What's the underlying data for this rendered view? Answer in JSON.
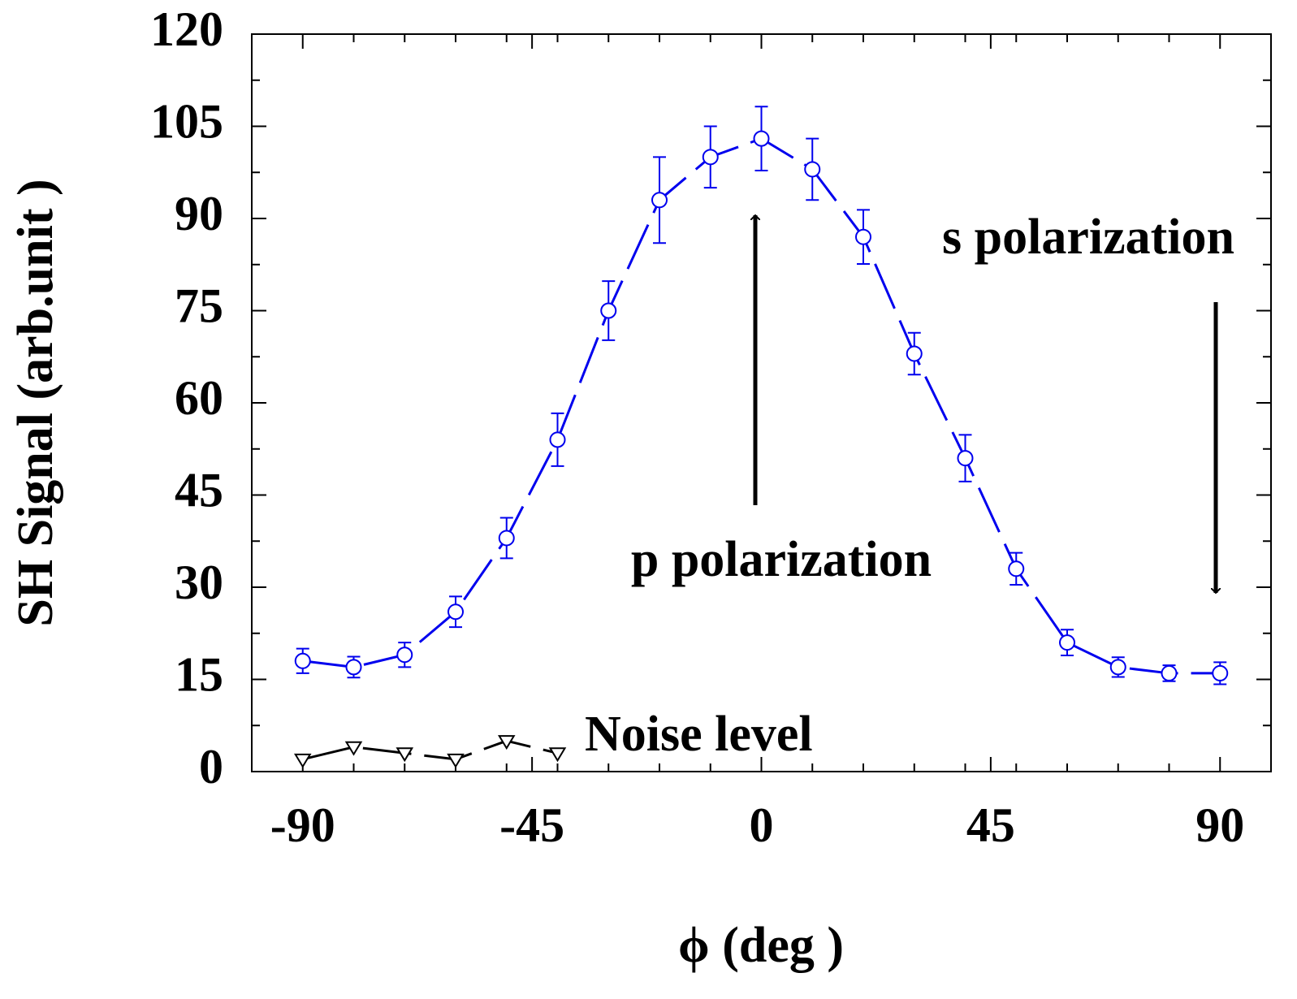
{
  "chart_data": {
    "type": "line",
    "xlabel": "ϕ  (deg )",
    "ylabel": "SH Signal (arb.unit )",
    "annotations": [
      "s polarization",
      "p polarization",
      "Noise level"
    ],
    "xlim": [
      -100,
      100
    ],
    "xticks": [
      -90,
      -45,
      0,
      45,
      90
    ],
    "xminorticks": [
      -80,
      -70,
      -60,
      -50,
      -40,
      -30,
      -20,
      -10,
      10,
      20,
      30,
      40,
      50,
      60,
      70,
      80
    ],
    "ylim": [
      0,
      120
    ],
    "yticks": [
      0,
      15,
      30,
      45,
      60,
      75,
      90,
      105,
      120
    ],
    "yminorticks": [
      7.5,
      22.5,
      37.5,
      52.5,
      67.5,
      82.5,
      97.5,
      112.5
    ],
    "series": [
      {
        "color": "#0000ee",
        "marker": "circle",
        "dashed": true,
        "x": [
          -90,
          -80,
          -70,
          -60,
          -50,
          -40,
          -30,
          -20,
          -10,
          0,
          10,
          20,
          30,
          40,
          50,
          60,
          70,
          80,
          90
        ],
        "values": [
          18,
          17,
          19,
          26,
          38,
          54,
          75,
          93,
          100,
          103,
          98,
          87,
          68,
          51,
          33,
          21,
          17,
          16,
          16
        ],
        "errors": [
          2,
          1.7,
          2,
          2.5,
          3.3,
          4.3,
          4.8,
          7,
          5,
          5.2,
          5,
          4.4,
          3.4,
          3.8,
          2.6,
          2.1,
          1.6,
          1.3,
          1.8
        ]
      },
      {
        "color": "#000000",
        "marker": "triangle-down",
        "dashed": true,
        "x": [
          -90,
          -80,
          -70,
          -60,
          -50,
          -40
        ],
        "values": [
          2,
          4,
          3,
          2,
          5,
          3
        ]
      }
    ]
  }
}
